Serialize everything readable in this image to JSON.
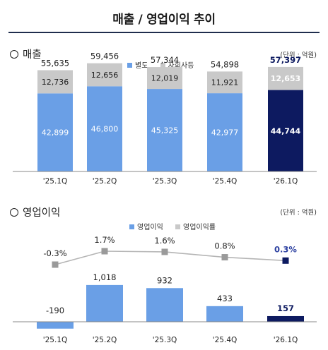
{
  "title": "매출 / 영업이익 추이",
  "colors": {
    "primary": "#6a9fe6",
    "other": "#c9c9c9",
    "highlight": "#0d1a60",
    "line": "#9a9a9a",
    "title_rule": "#1f2d4d"
  },
  "sections": {
    "revenue": {
      "title": "매출",
      "unit": "(단위 : 억원)",
      "icon": "circle-bullet-icon"
    },
    "operating": {
      "title": "영업이익",
      "unit": "(단위 : 억원)",
      "icon": "circle-bullet-icon"
    }
  },
  "chart_data": [
    {
      "type": "bar",
      "stacked": true,
      "categories": [
        "'25.1Q",
        "'25.2Q",
        "'25.3Q",
        "'25.4Q",
        "'26.1Q"
      ],
      "series": [
        {
          "name": "별도",
          "values": [
            42899,
            46800,
            45325,
            42977,
            44744
          ]
        },
        {
          "name": "자회사등",
          "values": [
            12736,
            12656,
            12019,
            11921,
            12653
          ]
        }
      ],
      "totals": [
        55635,
        59456,
        57344,
        54898,
        57397
      ],
      "value_labels": {
        "별도": [
          "42,899",
          "46,800",
          "45,325",
          "42,977",
          "44,744"
        ],
        "자회사등": [
          "12,736",
          "12,656",
          "12,019",
          "11,921",
          "12,653"
        ],
        "totals": [
          "55,635",
          "59,456",
          "57,344",
          "54,898",
          "57,397"
        ]
      },
      "highlight_index": 4,
      "legend_position": "top-center",
      "grid": false
    },
    {
      "type": "bar",
      "categories": [
        "'25.1Q",
        "'25.2Q",
        "'25.3Q",
        "'25.4Q",
        "'26.1Q"
      ],
      "series": [
        {
          "name": "영업이익",
          "values": [
            -190,
            1018,
            932,
            433,
            157
          ]
        },
        {
          "name": "영업이익률",
          "type": "line",
          "values": [
            -0.3,
            1.7,
            1.6,
            0.8,
            0.3
          ]
        }
      ],
      "value_labels": {
        "영업이익": [
          "-190",
          "1,018",
          "932",
          "433",
          "157"
        ],
        "영업이익률": [
          "-0.3%",
          "1.7%",
          "1.6%",
          "0.8%",
          "0.3%"
        ]
      },
      "highlight_index": 4,
      "legend_position": "top-center",
      "grid": false
    }
  ]
}
